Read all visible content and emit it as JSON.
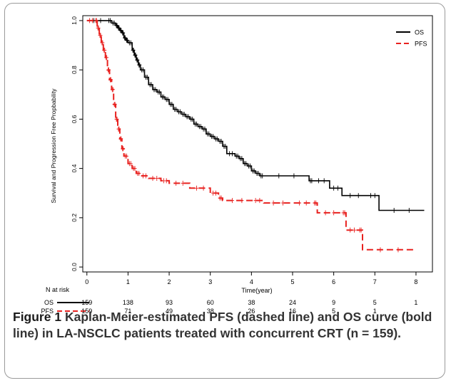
{
  "chart_data": {
    "type": "line",
    "title": "",
    "xlabel": "Time(year)",
    "ylabel": "Survival and Progression Free Propbability",
    "xlim": [
      -0.1,
      8.4
    ],
    "ylim": [
      -0.02,
      1.02
    ],
    "xticks": [
      0,
      1,
      2,
      3,
      4,
      5,
      6,
      7,
      8
    ],
    "yticks": [
      0.0,
      0.2,
      0.4,
      0.6,
      0.8,
      1.0
    ],
    "ytick_labels": [
      "0.0",
      "0.2",
      "0.4",
      "0.6",
      "0.8",
      "1.0"
    ],
    "grid": false,
    "legend_position": "top-right",
    "series": [
      {
        "name": "OS",
        "color": "#000000",
        "style": "solid",
        "x": [
          0.0,
          0.5,
          0.6,
          0.7,
          0.75,
          0.8,
          0.85,
          0.9,
          0.95,
          1.0,
          1.1,
          1.15,
          1.2,
          1.25,
          1.3,
          1.4,
          1.5,
          1.6,
          1.7,
          1.8,
          1.9,
          2.0,
          2.1,
          2.2,
          2.3,
          2.4,
          2.5,
          2.6,
          2.7,
          2.8,
          2.9,
          3.0,
          3.1,
          3.2,
          3.3,
          3.4,
          3.6,
          3.7,
          3.8,
          3.9,
          4.0,
          4.1,
          4.2,
          4.3,
          5.4,
          5.5,
          5.9,
          6.2,
          6.8,
          7.1,
          8.2
        ],
        "y": [
          1.0,
          1.0,
          0.99,
          0.98,
          0.97,
          0.96,
          0.95,
          0.93,
          0.92,
          0.91,
          0.88,
          0.86,
          0.84,
          0.82,
          0.8,
          0.77,
          0.74,
          0.72,
          0.71,
          0.69,
          0.68,
          0.66,
          0.64,
          0.63,
          0.62,
          0.61,
          0.6,
          0.58,
          0.57,
          0.56,
          0.54,
          0.53,
          0.52,
          0.51,
          0.49,
          0.46,
          0.45,
          0.44,
          0.42,
          0.41,
          0.39,
          0.38,
          0.37,
          0.37,
          0.35,
          0.35,
          0.32,
          0.29,
          0.29,
          0.23,
          0.23
        ]
      },
      {
        "name": "PFS",
        "color": "#e8211f",
        "style": "dashed",
        "x": [
          0.0,
          0.2,
          0.25,
          0.3,
          0.35,
          0.4,
          0.45,
          0.5,
          0.55,
          0.6,
          0.65,
          0.7,
          0.75,
          0.8,
          0.85,
          0.9,
          1.0,
          1.1,
          1.2,
          1.3,
          1.5,
          1.8,
          2.0,
          2.5,
          3.0,
          3.2,
          3.3,
          4.0,
          4.3,
          5.0,
          5.5,
          5.6,
          6.2,
          6.3,
          6.6,
          6.7,
          8.0
        ],
        "y": [
          1.0,
          1.0,
          0.97,
          0.94,
          0.91,
          0.88,
          0.85,
          0.8,
          0.76,
          0.72,
          0.66,
          0.6,
          0.56,
          0.52,
          0.48,
          0.45,
          0.42,
          0.4,
          0.38,
          0.37,
          0.36,
          0.35,
          0.34,
          0.32,
          0.3,
          0.28,
          0.27,
          0.27,
          0.26,
          0.26,
          0.26,
          0.22,
          0.22,
          0.15,
          0.15,
          0.07,
          0.07
        ]
      }
    ],
    "at_risk": {
      "title": "N at risk",
      "times": [
        0,
        1,
        2,
        3,
        4,
        5,
        6,
        7,
        8
      ],
      "rows": [
        {
          "name": "OS",
          "counts": [
            "159",
            "138",
            "93",
            "60",
            "38",
            "24",
            "9",
            "5",
            "1"
          ]
        },
        {
          "name": "PFS",
          "counts": [
            "159",
            "71",
            "49",
            "38",
            "26",
            "16",
            "5",
            "1",
            ""
          ]
        }
      ]
    }
  },
  "caption": {
    "label": "Figure 1",
    "text": "Kaplan-Meier-estimated PFS (dashed line) and OS curve (bold line) in LA-NSCLC patients treated with concurrent CRT (n = 159)."
  }
}
